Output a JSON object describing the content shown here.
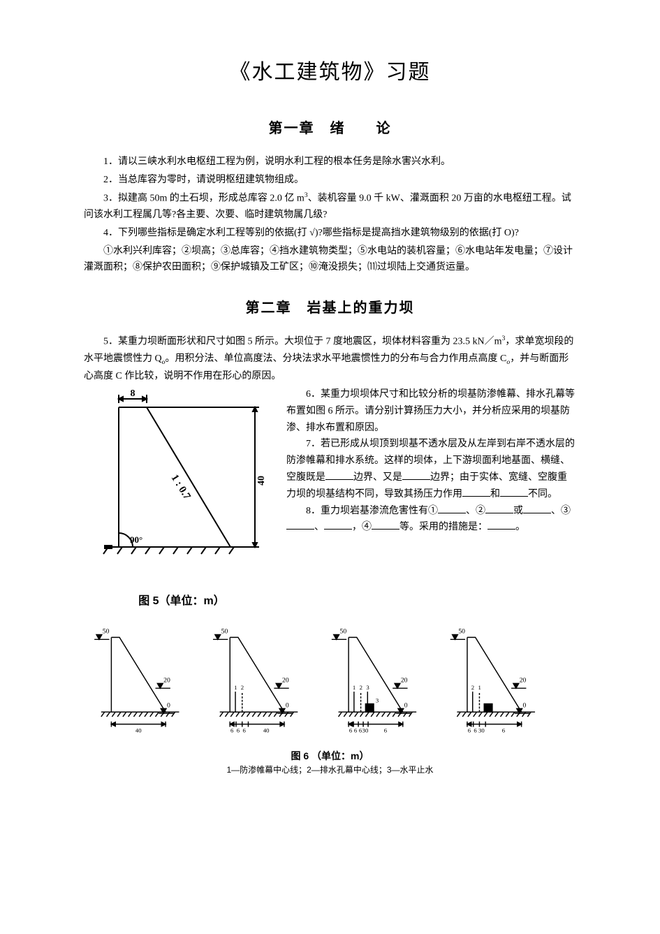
{
  "doc_title": "《水工建筑物》习题",
  "chapter1": {
    "title": "第一章　绪　　论",
    "q1": "1．请以三峡水利水电枢纽工程为例，说明水利工程的根本任务是除水害兴水利。",
    "q2": "2．当总库容为零时，请说明枢纽建筑物组成。",
    "q3_a": "3．拟建高 50m 的土石坝，形成总库容 2.0 亿 m",
    "q3_b": "、装机容量 9.0 千 kW、灌溉面积 20 万亩的水电枢纽工程。试问该水利工程属几等?各主要、次要、临时建筑物属几级?",
    "q4": "4．下列哪些指标是确定水利工程等别的依据(打 √)?哪些指标是提高挡水建筑物级别的依据(打 O)?",
    "q4_items": "①水利兴利库容；②坝高；③总库容；④挡水建筑物类型；⑤水电站的装机容量；⑥水电站年发电量；⑦设计灌溉面积；⑧保护农田面积；⑨保护城镇及工矿区；⑩淹没损失；⑾过坝陆上交通货运量。"
  },
  "chapter2": {
    "title": "第二章　岩基上的重力坝",
    "q5_a": "5．某重力坝断面形状和尺寸如图 5 所示。大坝位于 7 度地震区，坝体材料容重为 23.5 kN／m",
    "q5_b": "，求单宽坝段的水平地震惯性力 Q",
    "q5_c": "。用积分法、单位高度法、分块法求水平地震惯性力的分布与合力作用点高度 C",
    "q5_d": "，并与断面形心高度 C 作比较，说明不作用在形心的原因。",
    "q6": "6．某重力坝坝体尺寸和比较分析的坝基防渗帷幕、排水孔幕等布置如图 6 所示。请分别计算扬压力大小，并分析应采用的坝基防渗、排水布置和原因。",
    "q7_a": "7．若已形成从坝顶到坝基不透水层及从左岸到右岸不透水层的防渗帷幕和排水系统。这样的坝体，上下游坝面利地基面、横缝、空腹既是",
    "q7_b": "边界、又是",
    "q7_c": "边界；由于实体、宽缝、空腹重力坝的坝基结构不同，导致其扬压力作用",
    "q7_d": "和",
    "q7_e": "不同。",
    "q8_a": "8．重力坝岩基渗流危害性有①",
    "q8_b": "、②",
    "q8_c": "或",
    "q8_d": "、③",
    "q8_e": "、",
    "q8_f": "，④",
    "q8_g": "等。采用的措施是：",
    "q8_h": "。"
  },
  "fig5": {
    "caption": "图 5（单位：m）",
    "top_width": 8,
    "height": 40,
    "slope_label": "1 : 0.7",
    "angle": "90°",
    "stroke": "#000000",
    "stroke_width": 2,
    "bg": "#ffffff"
  },
  "fig6": {
    "caption": "图 6 （单位：m）",
    "legend": "1—防渗帷幕中心线；2—排水孔幕中心线；3—水平止水",
    "stroke": "#000000",
    "panels": [
      {
        "water_levels": {
          "upstream": 50,
          "downstream": 20,
          "base": 0
        },
        "labels_below": [
          "40"
        ],
        "markers": []
      },
      {
        "water_levels": {
          "upstream": 50,
          "downstream": 20,
          "base": 0
        },
        "labels_below": [
          "6",
          "6",
          "6",
          "40"
        ],
        "markers": [
          "1",
          "2"
        ]
      },
      {
        "water_levels": {
          "upstream": 50,
          "downstream": 20,
          "base": 0
        },
        "labels_below": [
          "6",
          "6",
          "6",
          "30",
          "6"
        ],
        "markers": [
          "1",
          "2",
          "3"
        ]
      },
      {
        "water_levels": {
          "upstream": 50,
          "downstream": 20,
          "base": 0
        },
        "labels_below": [
          "6",
          "6",
          "30",
          "6"
        ],
        "markers": [
          "2",
          "1"
        ]
      }
    ]
  }
}
